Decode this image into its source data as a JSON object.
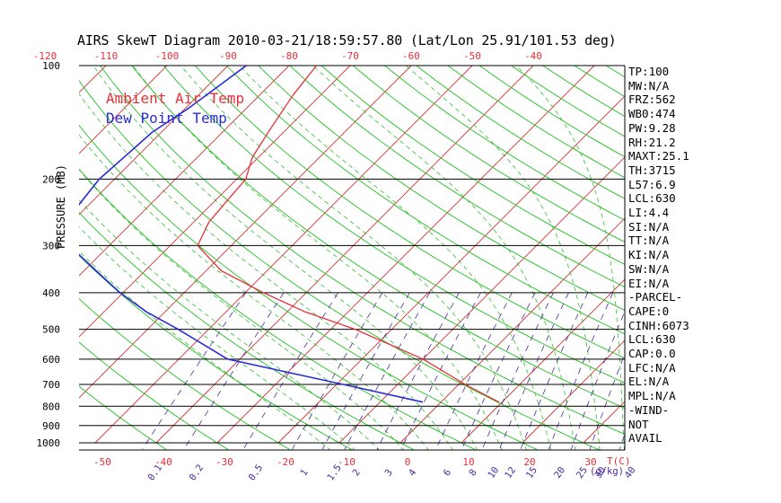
{
  "chart_data": {
    "type": "skewt",
    "title": "AIRS SkewT Diagram 2010-03-21/18:59:57.80 (Lat/Lon 25.91/101.53 deg)",
    "ylabel": "PRESSURE (MB)",
    "pressure_ticks": [
      "100",
      "200",
      "300",
      "400",
      "500",
      "600",
      "700",
      "800",
      "900",
      "1000"
    ],
    "pressure_levels": [
      100,
      200,
      300,
      400,
      500,
      600,
      700,
      800,
      900,
      1000
    ],
    "top_temp_ticks": [
      "-120",
      "-110",
      "-100",
      "-90",
      "-80",
      "-70",
      "-60",
      "-50",
      "-40"
    ],
    "bottom_temp_ticks": [
      "-50",
      "-40",
      "-30",
      "-20",
      "-10",
      "0",
      "10",
      "20",
      "30"
    ],
    "bottom_unit": "T(C)",
    "mixing_ratio_ticks": [
      "0.1",
      "0.2",
      "0.5",
      "1",
      "1.5",
      "2",
      "3",
      "4",
      "6",
      "8",
      "10",
      "12",
      "15",
      "20",
      "25",
      "30",
      "40"
    ],
    "mixing_ratio_unit": "(g/kg)",
    "series": [
      {
        "name": "Ambient Air Temp",
        "color": "#e8303a",
        "points": [
          {
            "p": 100,
            "t": -75.5
          },
          {
            "p": 120,
            "t": -74.5
          },
          {
            "p": 150,
            "t": -72.5
          },
          {
            "p": 175,
            "t": -71.0
          },
          {
            "p": 200,
            "t": -68.5
          },
          {
            "p": 230,
            "t": -68.0
          },
          {
            "p": 260,
            "t": -67.5
          },
          {
            "p": 300,
            "t": -65.5
          },
          {
            "p": 350,
            "t": -57.5
          },
          {
            "p": 400,
            "t": -47.0
          },
          {
            "p": 450,
            "t": -37.0
          },
          {
            "p": 500,
            "t": -26.0
          },
          {
            "p": 600,
            "t": -10.0
          },
          {
            "p": 700,
            "t": 1.0
          },
          {
            "p": 780,
            "t": 9.5
          }
        ]
      },
      {
        "name": "Dew Point Temp",
        "color": "#2b2bd8",
        "points": [
          {
            "p": 100,
            "t": -87.0
          },
          {
            "p": 130,
            "t": -89.5
          },
          {
            "p": 150,
            "t": -91.5
          },
          {
            "p": 200,
            "t": -92.5
          },
          {
            "p": 240,
            "t": -91.5
          },
          {
            "p": 300,
            "t": -86.5
          },
          {
            "p": 350,
            "t": -78.0
          },
          {
            "p": 400,
            "t": -70.5
          },
          {
            "p": 450,
            "t": -63.0
          },
          {
            "p": 500,
            "t": -55.0
          },
          {
            "p": 600,
            "t": -42.0
          },
          {
            "p": 700,
            "t": -19.0
          },
          {
            "p": 780,
            "t": -3.0
          }
        ]
      }
    ],
    "grid": true
  },
  "indices": [
    "TP:100",
    "MW:N/A",
    "FRZ:562",
    "WB0:474",
    "PW:9.28",
    "RH:21.2",
    "MAXT:25.1",
    "TH:3715",
    "L57:6.9",
    "LCL:630",
    "LI:4.4",
    "SI:N/A",
    "TT:N/A",
    "KI:N/A",
    "SW:N/A",
    "EI:N/A",
    "-PARCEL-",
    "CAPE:0",
    "CINH:6073",
    "LCL:630",
    "CAP:0.0",
    "LFC:N/A",
    "EL:N/A",
    "MPL:N/A",
    "-WIND-",
    "NOT",
    "AVAIL"
  ],
  "colors": {
    "isotherm": "#d03030",
    "dry_adiabat": "#20c020",
    "mixing_ratio": "#4a2aa0",
    "moist_adiabat": "#30c030",
    "frame": "#000000"
  }
}
